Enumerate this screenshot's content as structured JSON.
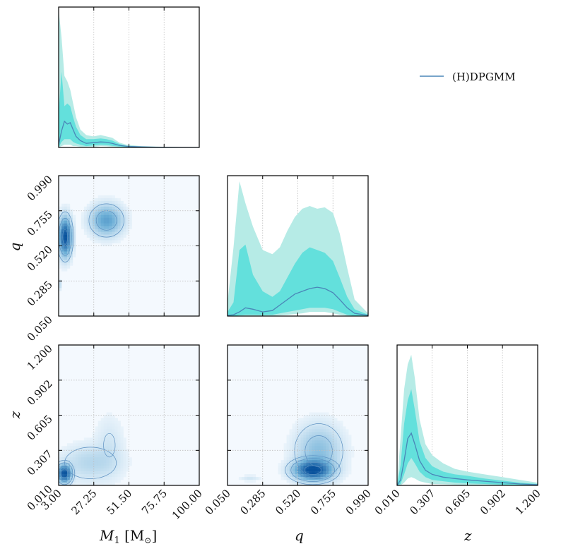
{
  "colors": {
    "median_line": "#4a86b8",
    "band_outer": "#b6ebe6",
    "band_inner": "#63e0dc",
    "density_dark": "#08519c",
    "density_mid": "#6baed6",
    "density_light": "#f4f9fe",
    "contour": "#5b8fc0",
    "grid": "#bdbdbd"
  },
  "chart_data": {
    "type": "corner",
    "legend": {
      "label": "(H)DPGMM",
      "placement": "top-right"
    },
    "variables": [
      {
        "key": "M1",
        "label_main": "M",
        "label_sub": "1",
        "label_unit": "[M",
        "label_unit_sub": "⊙",
        "label_unit_close": "]",
        "range": [
          3.0,
          100.0
        ],
        "ticks": [
          3.0,
          27.25,
          51.5,
          75.75,
          100.0
        ],
        "tick_labels": [
          "3.00",
          "27.25",
          "51.50",
          "75.75",
          "100.00"
        ]
      },
      {
        "key": "q",
        "label": "q",
        "range": [
          0.05,
          0.99
        ],
        "ticks": [
          0.05,
          0.285,
          0.52,
          0.755,
          0.99
        ],
        "tick_labels": [
          "0.050",
          "0.285",
          "0.520",
          "0.755",
          "0.990"
        ]
      },
      {
        "key": "z",
        "label": "z",
        "range": [
          0.01,
          1.2
        ],
        "ticks": [
          0.01,
          0.307,
          0.605,
          0.902,
          1.2
        ],
        "tick_labels": [
          "0.010",
          "0.307",
          "0.605",
          "0.902",
          "1.200"
        ]
      }
    ],
    "marginals": [
      {
        "variable": "M1",
        "x": [
          3,
          5,
          7,
          9,
          11,
          13,
          15,
          18,
          22,
          27,
          32,
          36,
          40,
          45,
          50,
          60,
          70,
          80,
          100
        ],
        "median": [
          0.02,
          0.12,
          0.19,
          0.17,
          0.18,
          0.13,
          0.08,
          0.05,
          0.03,
          0.035,
          0.04,
          0.038,
          0.03,
          0.015,
          0.008,
          0.004,
          0.002,
          0.001,
          0.0
        ],
        "inner_low": [
          0.0,
          0.04,
          0.06,
          0.06,
          0.06,
          0.04,
          0.03,
          0.02,
          0.01,
          0.015,
          0.02,
          0.018,
          0.012,
          0.006,
          0.003,
          0.001,
          0.0,
          0.0,
          0.0
        ],
        "inner_high": [
          0.25,
          0.55,
          0.3,
          0.32,
          0.3,
          0.22,
          0.15,
          0.09,
          0.06,
          0.06,
          0.065,
          0.06,
          0.05,
          0.025,
          0.012,
          0.006,
          0.004,
          0.002,
          0.001
        ],
        "outer_low": [
          0.0,
          0.01,
          0.02,
          0.02,
          0.02,
          0.01,
          0.01,
          0.005,
          0.005,
          0.005,
          0.01,
          0.008,
          0.005,
          0.002,
          0.001,
          0.0,
          0.0,
          0.0,
          0.0
        ],
        "outer_high": [
          1.0,
          0.8,
          0.52,
          0.48,
          0.42,
          0.32,
          0.22,
          0.13,
          0.09,
          0.08,
          0.09,
          0.08,
          0.07,
          0.035,
          0.02,
          0.01,
          0.006,
          0.003,
          0.002
        ],
        "ylim": [
          0,
          1.0
        ]
      },
      {
        "variable": "q",
        "x": [
          0.05,
          0.09,
          0.13,
          0.17,
          0.22,
          0.285,
          0.35,
          0.4,
          0.45,
          0.5,
          0.55,
          0.6,
          0.65,
          0.7,
          0.755,
          0.8,
          0.85,
          0.9,
          0.99
        ],
        "median": [
          0.005,
          0.01,
          0.03,
          0.06,
          0.05,
          0.03,
          0.04,
          0.08,
          0.12,
          0.16,
          0.18,
          0.2,
          0.21,
          0.2,
          0.17,
          0.12,
          0.06,
          0.02,
          0.005
        ],
        "inner_low": [
          0.0,
          0.0,
          0.005,
          0.01,
          0.01,
          0.008,
          0.01,
          0.02,
          0.03,
          0.04,
          0.05,
          0.06,
          0.06,
          0.06,
          0.05,
          0.03,
          0.01,
          0.0,
          0.0
        ],
        "inner_high": [
          0.03,
          0.1,
          0.48,
          0.52,
          0.3,
          0.18,
          0.14,
          0.18,
          0.28,
          0.38,
          0.46,
          0.5,
          0.48,
          0.46,
          0.4,
          0.28,
          0.14,
          0.05,
          0.01
        ],
        "outer_low": [
          0.0,
          0.0,
          0.0,
          0.002,
          0.002,
          0.001,
          0.002,
          0.005,
          0.01,
          0.015,
          0.02,
          0.03,
          0.03,
          0.03,
          0.02,
          0.01,
          0.002,
          0.0,
          0.0
        ],
        "outer_high": [
          0.1,
          0.5,
          0.98,
          0.82,
          0.65,
          0.48,
          0.45,
          0.5,
          0.62,
          0.72,
          0.78,
          0.8,
          0.78,
          0.79,
          0.75,
          0.6,
          0.35,
          0.12,
          0.02
        ],
        "ylim": [
          0,
          1.0
        ]
      },
      {
        "variable": "z",
        "x": [
          0.01,
          0.04,
          0.07,
          0.1,
          0.13,
          0.16,
          0.2,
          0.25,
          0.307,
          0.4,
          0.5,
          0.605,
          0.75,
          0.902,
          1.05,
          1.2
        ],
        "median": [
          0.0,
          0.04,
          0.18,
          0.34,
          0.38,
          0.3,
          0.18,
          0.11,
          0.08,
          0.06,
          0.05,
          0.04,
          0.03,
          0.02,
          0.01,
          0.005
        ],
        "inner_low": [
          0.0,
          0.01,
          0.08,
          0.16,
          0.2,
          0.16,
          0.1,
          0.06,
          0.04,
          0.03,
          0.02,
          0.015,
          0.01,
          0.005,
          0.003,
          0.0
        ],
        "inner_high": [
          0.0,
          0.15,
          0.45,
          0.62,
          0.7,
          0.55,
          0.32,
          0.2,
          0.14,
          0.1,
          0.08,
          0.07,
          0.05,
          0.035,
          0.02,
          0.01
        ],
        "outer_low": [
          0.0,
          0.0,
          0.02,
          0.05,
          0.06,
          0.05,
          0.03,
          0.02,
          0.01,
          0.008,
          0.005,
          0.003,
          0.002,
          0.001,
          0.0,
          0.0
        ],
        "outer_high": [
          0.0,
          0.35,
          0.7,
          0.88,
          0.95,
          0.78,
          0.48,
          0.3,
          0.22,
          0.16,
          0.12,
          0.1,
          0.08,
          0.06,
          0.04,
          0.02
        ],
        "ylim": [
          0,
          1.0
        ]
      }
    ],
    "joint_densities": [
      {
        "x": "M1",
        "y": "q",
        "components": [
          {
            "cx": 7.5,
            "cy": 0.58,
            "sx": 2.6,
            "sy": 0.075,
            "w": 1.0
          },
          {
            "cx": 36.0,
            "cy": 0.69,
            "sx": 6.5,
            "sy": 0.06,
            "w": 0.45
          },
          {
            "cx": 4.0,
            "cy": 0.26,
            "sx": 0.8,
            "sy": 0.02,
            "w": 0.08
          }
        ],
        "contour_levels": [
          0.08,
          0.25,
          0.5,
          0.8
        ]
      },
      {
        "x": "M1",
        "y": "z",
        "components": [
          {
            "cx": 7.0,
            "cy": 0.11,
            "sx": 2.8,
            "sy": 0.045,
            "w": 1.0
          },
          {
            "cx": 25.0,
            "cy": 0.2,
            "sx": 12.0,
            "sy": 0.09,
            "w": 0.12
          },
          {
            "cx": 38.0,
            "cy": 0.35,
            "sx": 6.0,
            "sy": 0.15,
            "w": 0.05
          }
        ],
        "contour_levels": [
          0.04,
          0.12,
          0.35,
          0.7
        ]
      },
      {
        "x": "q",
        "y": "z",
        "components": [
          {
            "cx": 0.62,
            "cy": 0.14,
            "sx": 0.075,
            "sy": 0.05,
            "w": 1.0
          },
          {
            "cx": 0.66,
            "cy": 0.3,
            "sx": 0.09,
            "sy": 0.13,
            "w": 0.25
          },
          {
            "cx": 0.2,
            "cy": 0.07,
            "sx": 0.04,
            "sy": 0.015,
            "w": 0.05
          }
        ],
        "contour_levels": [
          0.05,
          0.15,
          0.4,
          0.75
        ]
      }
    ]
  }
}
